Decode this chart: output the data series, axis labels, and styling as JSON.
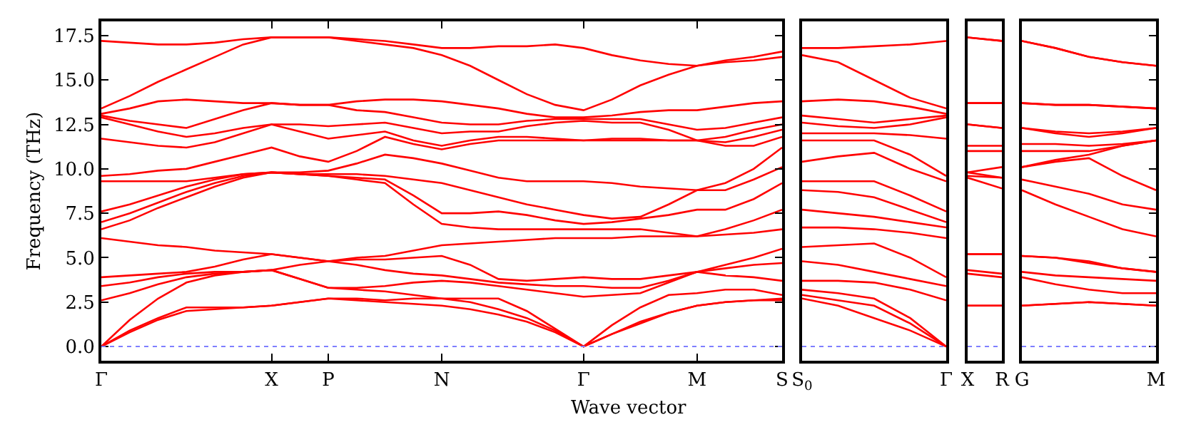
{
  "chart_data": [
    {
      "type": "line",
      "color": "#ff0000",
      "ylabel": "Frequency (THz)",
      "xlabel": "Wave vector",
      "categories": [
        "Γ",
        null,
        null,
        null,
        null,
        null,
        "X",
        null,
        "P",
        null,
        null,
        null,
        "N",
        null,
        null,
        null,
        null,
        "Γ",
        null,
        null,
        null,
        "M",
        null,
        null,
        "S"
      ],
      "ylim": [
        -0.8,
        18.3
      ],
      "yticks": [
        {
          "value": 0,
          "label": "0.0"
        },
        2.5,
        {
          "value": 5,
          "label": "5.0"
        },
        7.5,
        {
          "value": 10,
          "label": "10.0"
        },
        12.5,
        {
          "value": 15,
          "label": "15.0"
        },
        17.5
      ],
      "ref_lines": [
        {
          "axis": "y",
          "value": 0,
          "color": "#7f7fff",
          "line_style": "dotted"
        }
      ],
      "series": [
        {
          "values": [
            0,
            0.8,
            1.5,
            2.0,
            2.1,
            2.2,
            2.3,
            2.5,
            2.7,
            2.6,
            2.5,
            2.4,
            2.3,
            2.1,
            1.8,
            1.4,
            0.8,
            0,
            0.7,
            1.3,
            1.9,
            2.3,
            2.5,
            2.6,
            2.6
          ]
        },
        {
          "values": [
            0,
            0.9,
            1.6,
            2.2,
            2.2,
            2.2,
            2.3,
            2.5,
            2.7,
            2.7,
            2.6,
            2.7,
            2.7,
            2.5,
            2.1,
            1.6,
            0.9,
            0,
            0.7,
            1.4,
            1.9,
            2.3,
            2.5,
            2.6,
            2.7
          ]
        },
        {
          "values": [
            0,
            1.5,
            2.7,
            3.6,
            4.0,
            4.2,
            4.3,
            3.8,
            3.3,
            3.2,
            3.1,
            2.9,
            2.7,
            2.7,
            2.7,
            2.0,
            1.0,
            0,
            1.2,
            2.2,
            2.9,
            3.0,
            3.2,
            3.2,
            2.9
          ]
        },
        {
          "values": [
            2.6,
            3.0,
            3.5,
            3.9,
            4.1,
            4.2,
            4.3,
            3.8,
            3.3,
            3.3,
            3.4,
            3.6,
            3.7,
            3.6,
            3.4,
            3.2,
            3.0,
            2.8,
            2.9,
            3.0,
            3.6,
            4.2,
            4.0,
            3.9,
            3.7
          ]
        },
        {
          "values": [
            3.4,
            3.6,
            3.9,
            4.1,
            4.2,
            4.2,
            4.3,
            4.6,
            4.8,
            4.6,
            4.3,
            4.1,
            4.0,
            3.8,
            3.6,
            3.5,
            3.4,
            3.4,
            3.3,
            3.3,
            3.7,
            4.2,
            4.4,
            4.6,
            4.7
          ]
        },
        {
          "values": [
            3.9,
            4.0,
            4.1,
            4.2,
            4.5,
            4.9,
            5.2,
            5.0,
            4.8,
            4.9,
            4.9,
            5.0,
            5.1,
            4.6,
            3.8,
            3.7,
            3.8,
            3.9,
            3.8,
            3.8,
            4.0,
            4.2,
            4.6,
            5.0,
            5.5
          ]
        },
        {
          "values": [
            6.1,
            5.9,
            5.7,
            5.6,
            5.4,
            5.3,
            5.2,
            5.0,
            4.8,
            5.0,
            5.1,
            5.4,
            5.7,
            5.8,
            5.9,
            6.0,
            6.1,
            6.1,
            6.1,
            6.2,
            6.2,
            6.2,
            6.3,
            6.4,
            6.6
          ]
        },
        {
          "values": [
            6.6,
            7.1,
            7.8,
            8.4,
            9.0,
            9.5,
            9.8,
            9.7,
            9.6,
            9.4,
            9.2,
            8.0,
            6.9,
            6.7,
            6.6,
            6.6,
            6.6,
            6.6,
            6.6,
            6.6,
            6.4,
            6.2,
            6.6,
            7.1,
            7.7
          ]
        },
        {
          "values": [
            7.0,
            7.5,
            8.1,
            8.7,
            9.2,
            9.6,
            9.8,
            9.7,
            9.6,
            9.5,
            9.4,
            8.5,
            7.5,
            7.5,
            7.6,
            7.4,
            7.1,
            6.9,
            7.0,
            7.2,
            7.4,
            7.7,
            7.7,
            8.3,
            9.2
          ]
        },
        {
          "values": [
            7.6,
            8.0,
            8.5,
            9.0,
            9.4,
            9.7,
            9.8,
            9.7,
            9.7,
            9.7,
            9.6,
            9.4,
            9.2,
            8.8,
            8.4,
            8.0,
            7.7,
            7.4,
            7.2,
            7.3,
            8.0,
            8.8,
            8.8,
            9.4,
            10.1
          ]
        },
        {
          "values": [
            9.3,
            9.3,
            9.3,
            9.3,
            9.5,
            9.7,
            9.8,
            9.8,
            9.9,
            10.3,
            10.8,
            10.6,
            10.3,
            9.9,
            9.5,
            9.3,
            9.3,
            9.3,
            9.2,
            9.0,
            8.9,
            8.8,
            9.2,
            10.0,
            11.2
          ]
        },
        {
          "values": [
            9.6,
            9.7,
            9.9,
            10.0,
            10.4,
            10.8,
            11.2,
            10.7,
            10.4,
            11.0,
            11.8,
            11.4,
            11.1,
            11.4,
            11.6,
            11.6,
            11.6,
            11.6,
            11.6,
            11.6,
            11.6,
            11.6,
            11.3,
            11.3,
            11.8
          ]
        },
        {
          "values": [
            11.7,
            11.5,
            11.3,
            11.2,
            11.5,
            12.0,
            12.5,
            12.1,
            11.7,
            11.9,
            12.1,
            11.6,
            11.3,
            11.6,
            11.8,
            11.8,
            11.7,
            11.6,
            11.7,
            11.7,
            11.6,
            11.6,
            11.5,
            11.8,
            12.2
          ]
        },
        {
          "values": [
            12.9,
            12.5,
            12.1,
            11.8,
            12.0,
            12.3,
            12.5,
            12.5,
            12.4,
            12.5,
            12.6,
            12.3,
            12.0,
            12.1,
            12.1,
            12.4,
            12.6,
            12.7,
            12.6,
            12.6,
            12.2,
            11.6,
            11.8,
            12.2,
            12.5
          ]
        },
        {
          "values": [
            13.0,
            12.7,
            12.5,
            12.3,
            12.8,
            13.3,
            13.7,
            13.6,
            13.6,
            13.3,
            13.2,
            12.9,
            12.6,
            12.5,
            12.5,
            12.7,
            12.8,
            12.8,
            12.8,
            12.8,
            12.5,
            12.2,
            12.3,
            12.6,
            12.9
          ]
        },
        {
          "values": [
            13.1,
            13.4,
            13.8,
            13.9,
            13.8,
            13.7,
            13.7,
            13.6,
            13.6,
            13.8,
            13.9,
            13.9,
            13.8,
            13.6,
            13.4,
            13.1,
            12.9,
            12.9,
            13.0,
            13.2,
            13.3,
            13.3,
            13.5,
            13.7,
            13.8
          ]
        },
        {
          "values": [
            13.4,
            14.1,
            14.9,
            15.6,
            16.3,
            17.0,
            17.4,
            17.4,
            17.4,
            17.2,
            17.0,
            16.8,
            16.4,
            15.8,
            15.0,
            14.2,
            13.6,
            13.3,
            13.9,
            14.7,
            15.3,
            15.8,
            16.0,
            16.1,
            16.3
          ]
        },
        {
          "values": [
            17.2,
            17.1,
            17.0,
            17.0,
            17.1,
            17.3,
            17.4,
            17.4,
            17.4,
            17.3,
            17.2,
            17.0,
            16.8,
            16.8,
            16.9,
            16.9,
            17.0,
            16.8,
            16.4,
            16.1,
            15.9,
            15.8,
            16.1,
            16.3,
            16.6
          ]
        }
      ]
    },
    {
      "type": "line",
      "color": "#ff0000",
      "tick_labels": "x",
      "categories": [
        "S$_{0}$",
        null,
        null,
        null,
        "Γ"
      ],
      "ylim": [
        -0.8,
        18.3
      ],
      "yticks": [
        0,
        2.5,
        5,
        7.5,
        10,
        12.5,
        15,
        17.5
      ],
      "ref_lines": [
        {
          "axis": "y",
          "value": 0,
          "color": "#7f7fff",
          "line_style": "dotted"
        }
      ],
      "series": [
        {
          "values": [
            2.7,
            2.3,
            1.6,
            0.9,
            0
          ]
        },
        {
          "values": [
            2.9,
            2.6,
            2.3,
            1.3,
            0
          ]
        },
        {
          "values": [
            3.2,
            3.0,
            2.7,
            1.6,
            0
          ]
        },
        {
          "values": [
            3.7,
            3.7,
            3.6,
            3.2,
            2.6
          ]
        },
        {
          "values": [
            4.8,
            4.6,
            4.2,
            3.8,
            3.4
          ]
        },
        {
          "values": [
            5.6,
            5.7,
            5.8,
            5.0,
            3.9
          ]
        },
        {
          "values": [
            6.7,
            6.7,
            6.6,
            6.4,
            6.1
          ]
        },
        {
          "values": [
            7.7,
            7.5,
            7.3,
            7.0,
            6.7
          ]
        },
        {
          "values": [
            8.8,
            8.7,
            8.4,
            7.7,
            7.0
          ]
        },
        {
          "values": [
            9.3,
            9.3,
            9.3,
            8.5,
            7.6
          ]
        },
        {
          "values": [
            10.4,
            10.7,
            10.9,
            10.0,
            9.3
          ]
        },
        {
          "values": [
            11.6,
            11.6,
            11.6,
            10.8,
            9.6
          ]
        },
        {
          "values": [
            12.0,
            12.0,
            12.0,
            11.9,
            11.7
          ]
        },
        {
          "values": [
            12.6,
            12.4,
            12.3,
            12.5,
            12.9
          ]
        },
        {
          "values": [
            13.0,
            12.8,
            12.6,
            12.8,
            13.0
          ]
        },
        {
          "values": [
            13.8,
            13.9,
            13.8,
            13.5,
            13.1
          ]
        },
        {
          "values": [
            16.4,
            16.0,
            15.0,
            14.0,
            13.4
          ]
        },
        {
          "values": [
            16.8,
            16.8,
            16.9,
            17.0,
            17.2
          ]
        }
      ]
    },
    {
      "type": "line",
      "color": "#ff0000",
      "tick_labels": "x",
      "categories": [
        "X",
        "R"
      ],
      "ylim": [
        -0.8,
        18.3
      ],
      "yticks": [
        0,
        2.5,
        5,
        7.5,
        10,
        12.5,
        15,
        17.5
      ],
      "ref_lines": [
        {
          "axis": "y",
          "value": 0,
          "color": "#7f7fff",
          "line_style": "dotted"
        }
      ],
      "series": [
        {
          "values": [
            2.3,
            2.3
          ]
        },
        {
          "values": [
            2.3,
            2.3
          ]
        },
        {
          "values": [
            4.1,
            3.9
          ]
        },
        {
          "values": [
            4.3,
            4.1
          ]
        },
        {
          "values": [
            5.2,
            5.2
          ]
        },
        {
          "values": [
            5.2,
            5.2
          ]
        },
        {
          "values": [
            9.5,
            8.9
          ]
        },
        {
          "values": [
            9.6,
            9.5
          ]
        },
        {
          "values": [
            9.8,
            9.5
          ]
        },
        {
          "values": [
            9.8,
            10.1
          ]
        },
        {
          "values": [
            11.0,
            11.0
          ]
        },
        {
          "values": [
            11.3,
            11.3
          ]
        },
        {
          "values": [
            12.5,
            12.3
          ]
        },
        {
          "values": [
            12.5,
            12.3
          ]
        },
        {
          "values": [
            13.7,
            13.7
          ]
        },
        {
          "values": [
            13.7,
            13.7
          ]
        },
        {
          "values": [
            17.4,
            17.2
          ]
        },
        {
          "values": [
            17.4,
            17.2
          ]
        }
      ]
    },
    {
      "type": "line",
      "color": "#ff0000",
      "tick_labels": "x",
      "categories": [
        "G",
        null,
        null,
        null,
        "M"
      ],
      "ylim": [
        -0.8,
        18.3
      ],
      "yticks": [
        0,
        2.5,
        5,
        7.5,
        10,
        12.5,
        15,
        17.5
      ],
      "ref_lines": [
        {
          "axis": "y",
          "value": 0,
          "color": "#7f7fff",
          "line_style": "dotted"
        }
      ],
      "series": [
        {
          "values": [
            2.3,
            2.4,
            2.5,
            2.4,
            2.3
          ]
        },
        {
          "values": [
            2.3,
            2.4,
            2.5,
            2.4,
            2.3
          ]
        },
        {
          "values": [
            3.9,
            3.5,
            3.2,
            3.0,
            3.0
          ]
        },
        {
          "values": [
            4.2,
            4.0,
            3.9,
            3.8,
            3.7
          ]
        },
        {
          "values": [
            5.1,
            5.0,
            4.7,
            4.4,
            4.2
          ]
        },
        {
          "values": [
            5.1,
            5.0,
            4.8,
            4.4,
            4.2
          ]
        },
        {
          "values": [
            8.8,
            8.0,
            7.3,
            6.6,
            6.2
          ]
        },
        {
          "values": [
            9.4,
            9.0,
            8.6,
            8.0,
            7.7
          ]
        },
        {
          "values": [
            10.1,
            10.4,
            10.6,
            9.6,
            8.8
          ]
        },
        {
          "values": [
            10.1,
            10.5,
            10.8,
            11.3,
            11.6
          ]
        },
        {
          "values": [
            11.0,
            11.0,
            11.0,
            11.3,
            11.6
          ]
        },
        {
          "values": [
            11.4,
            11.4,
            11.3,
            11.4,
            11.6
          ]
        },
        {
          "values": [
            12.3,
            12.0,
            11.8,
            12.0,
            12.3
          ]
        },
        {
          "values": [
            12.3,
            12.1,
            12.0,
            12.1,
            12.3
          ]
        },
        {
          "values": [
            13.7,
            13.6,
            13.6,
            13.5,
            13.4
          ]
        },
        {
          "values": [
            13.7,
            13.6,
            13.6,
            13.5,
            13.4
          ]
        },
        {
          "values": [
            17.2,
            16.8,
            16.3,
            16.0,
            15.8
          ]
        },
        {
          "values": [
            17.2,
            16.8,
            16.3,
            16.0,
            15.8
          ]
        }
      ]
    }
  ]
}
